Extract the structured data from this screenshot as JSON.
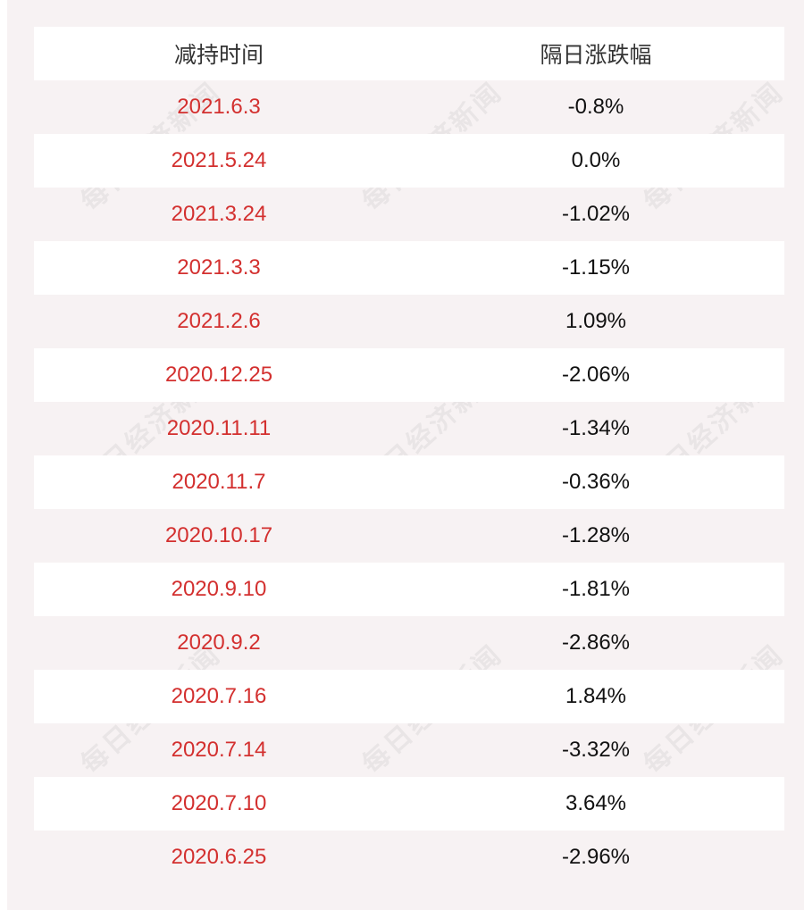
{
  "header": {
    "col_date": "减持时间",
    "col_change": "隔日涨跌幅"
  },
  "watermark": "每日经济新闻",
  "rows": [
    {
      "date": "2021.6.3",
      "change": "-0.8%"
    },
    {
      "date": "2021.5.24",
      "change": "0.0%"
    },
    {
      "date": "2021.3.24",
      "change": "-1.02%"
    },
    {
      "date": "2021.3.3",
      "change": "-1.15%"
    },
    {
      "date": "2021.2.6",
      "change": "1.09%"
    },
    {
      "date": "2020.12.25",
      "change": "-2.06%"
    },
    {
      "date": "2020.11.11",
      "change": "-1.34%"
    },
    {
      "date": "2020.11.7",
      "change": "-0.36%"
    },
    {
      "date": "2020.10.17",
      "change": "-1.28%"
    },
    {
      "date": "2020.9.10",
      "change": "-1.81%"
    },
    {
      "date": "2020.9.2",
      "change": "-2.86%"
    },
    {
      "date": "2020.7.16",
      "change": "1.84%"
    },
    {
      "date": "2020.7.14",
      "change": "-3.32%"
    },
    {
      "date": "2020.7.10",
      "change": "3.64%"
    },
    {
      "date": "2020.6.25",
      "change": "-2.96%"
    }
  ],
  "colors": {
    "panel_bg": "#f7f2f3",
    "stripe": "#ffffff",
    "date_text": "#d3302f",
    "value_text": "#111111",
    "header_text": "#333333"
  }
}
